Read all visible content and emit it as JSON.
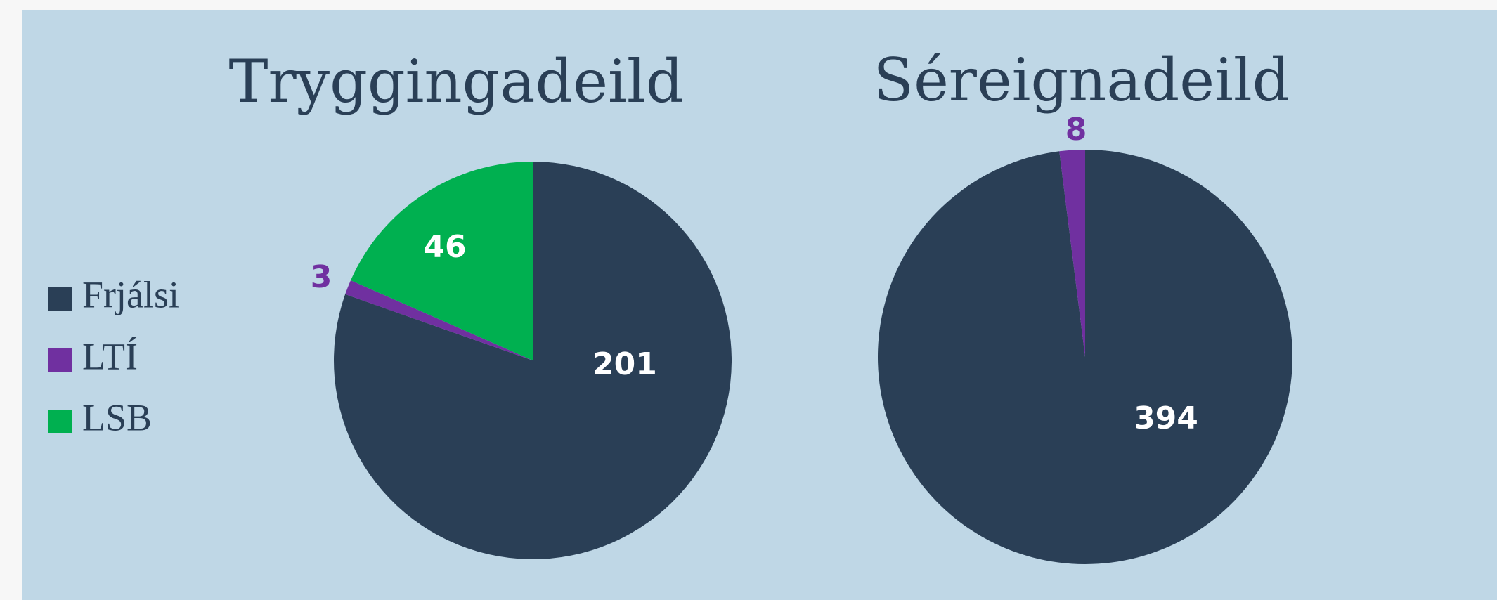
{
  "chart_data": [
    {
      "type": "pie",
      "title": "Tryggingadeild",
      "categories": [
        "Frjálsi",
        "LTÍ",
        "LSB"
      ],
      "values": [
        201,
        3,
        46
      ],
      "colors": [
        "#2a3f56",
        "#7030a0",
        "#00b050"
      ]
    },
    {
      "type": "pie",
      "title": "Séreignadeild",
      "values": [
        394,
        8
      ],
      "colors": [
        "#2a3f56",
        "#7030a0"
      ]
    }
  ]
}
